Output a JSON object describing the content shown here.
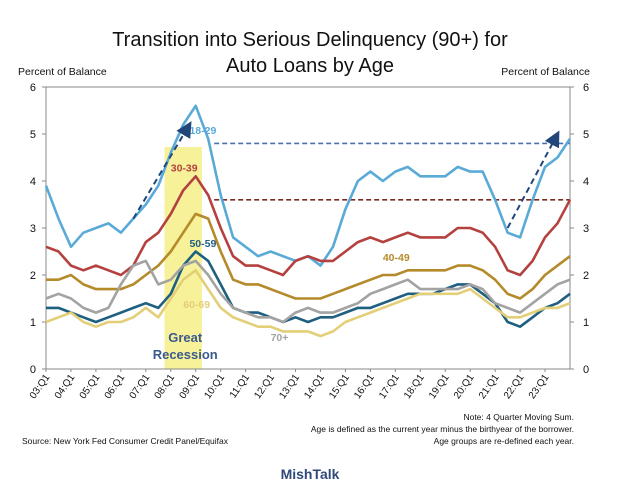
{
  "brand": "MishTalk",
  "chart_data": {
    "type": "line",
    "title_line1": "Transition into Serious Delinquency (90+) for",
    "title_line2": "Auto Loans by Age",
    "ylabel_left": "Percent of Balance",
    "ylabel_right": "Percent of Balance",
    "ylim": [
      0,
      6
    ],
    "yticks": [
      0,
      1,
      2,
      3,
      4,
      5,
      6
    ],
    "x_start": "03:Q1",
    "x_end": "24:Q1",
    "x_ticks": [
      "03:Q1",
      "04:Q1",
      "05:Q1",
      "06:Q1",
      "07:Q1",
      "08:Q1",
      "09:Q1",
      "10:Q1",
      "11:Q1",
      "12:Q1",
      "13:Q1",
      "14:Q1",
      "15:Q1",
      "16:Q1",
      "17:Q1",
      "18:Q1",
      "19:Q1",
      "20:Q1",
      "21:Q1",
      "22:Q1",
      "23:Q1"
    ],
    "shaded_region": {
      "label_line1": "Great",
      "label_line2": "Recession",
      "start": "07:Q4",
      "end": "09:Q2",
      "color": "#f7f29a"
    },
    "series": [
      {
        "name": "18-29",
        "color": "#5aaad8",
        "quarters": [
          "03:Q1",
          "03:Q3",
          "04:Q1",
          "04:Q3",
          "05:Q1",
          "05:Q3",
          "06:Q1",
          "06:Q3",
          "07:Q1",
          "07:Q3",
          "08:Q1",
          "08:Q3",
          "09:Q1",
          "09:Q3",
          "10:Q1",
          "10:Q3",
          "11:Q1",
          "11:Q3",
          "12:Q1",
          "12:Q3",
          "13:Q1",
          "13:Q3",
          "14:Q1",
          "14:Q3",
          "15:Q1",
          "15:Q3",
          "16:Q1",
          "16:Q3",
          "17:Q1",
          "17:Q3",
          "18:Q1",
          "18:Q3",
          "19:Q1",
          "19:Q3",
          "20:Q1",
          "20:Q3",
          "21:Q1",
          "21:Q3",
          "22:Q1",
          "22:Q3",
          "23:Q1",
          "23:Q3",
          "24:Q1"
        ],
        "values": [
          3.9,
          3.2,
          2.6,
          2.9,
          3.0,
          3.1,
          2.9,
          3.2,
          3.5,
          3.9,
          4.6,
          5.2,
          5.6,
          4.9,
          3.7,
          2.8,
          2.6,
          2.4,
          2.5,
          2.4,
          2.3,
          2.4,
          2.2,
          2.6,
          3.4,
          4.0,
          4.2,
          4.0,
          4.2,
          4.3,
          4.1,
          4.1,
          4.1,
          4.3,
          4.2,
          4.2,
          3.6,
          2.9,
          2.8,
          3.6,
          4.3,
          4.5,
          4.9
        ]
      },
      {
        "name": "30-39",
        "color": "#b5413f",
        "quarters": [
          "03:Q1",
          "03:Q3",
          "04:Q1",
          "04:Q3",
          "05:Q1",
          "05:Q3",
          "06:Q1",
          "06:Q3",
          "07:Q1",
          "07:Q3",
          "08:Q1",
          "08:Q3",
          "09:Q1",
          "09:Q3",
          "10:Q1",
          "10:Q3",
          "11:Q1",
          "11:Q3",
          "12:Q1",
          "12:Q3",
          "13:Q1",
          "13:Q3",
          "14:Q1",
          "14:Q3",
          "15:Q1",
          "15:Q3",
          "16:Q1",
          "16:Q3",
          "17:Q1",
          "17:Q3",
          "18:Q1",
          "18:Q3",
          "19:Q1",
          "19:Q3",
          "20:Q1",
          "20:Q3",
          "21:Q1",
          "21:Q3",
          "22:Q1",
          "22:Q3",
          "23:Q1",
          "23:Q3",
          "24:Q1"
        ],
        "values": [
          2.6,
          2.5,
          2.2,
          2.1,
          2.2,
          2.1,
          2.0,
          2.2,
          2.7,
          2.9,
          3.3,
          3.8,
          4.1,
          3.7,
          3.0,
          2.4,
          2.2,
          2.2,
          2.1,
          2.0,
          2.3,
          2.4,
          2.3,
          2.3,
          2.5,
          2.7,
          2.8,
          2.7,
          2.8,
          2.9,
          2.8,
          2.8,
          2.8,
          3.0,
          3.0,
          2.9,
          2.6,
          2.1,
          2.0,
          2.3,
          2.8,
          3.1,
          3.6
        ]
      },
      {
        "name": "40-49",
        "color": "#b58a2a",
        "quarters": [
          "03:Q1",
          "03:Q3",
          "04:Q1",
          "04:Q3",
          "05:Q1",
          "05:Q3",
          "06:Q1",
          "06:Q3",
          "07:Q1",
          "07:Q3",
          "08:Q1",
          "08:Q3",
          "09:Q1",
          "09:Q3",
          "10:Q1",
          "10:Q3",
          "11:Q1",
          "11:Q3",
          "12:Q1",
          "12:Q3",
          "13:Q1",
          "13:Q3",
          "14:Q1",
          "14:Q3",
          "15:Q1",
          "15:Q3",
          "16:Q1",
          "16:Q3",
          "17:Q1",
          "17:Q3",
          "18:Q1",
          "18:Q3",
          "19:Q1",
          "19:Q3",
          "20:Q1",
          "20:Q3",
          "21:Q1",
          "21:Q3",
          "22:Q1",
          "22:Q3",
          "23:Q1",
          "23:Q3",
          "24:Q1"
        ],
        "values": [
          1.9,
          1.9,
          2.0,
          1.8,
          1.7,
          1.7,
          1.7,
          1.8,
          2.0,
          2.2,
          2.5,
          2.9,
          3.3,
          3.2,
          2.5,
          1.9,
          1.8,
          1.8,
          1.7,
          1.6,
          1.5,
          1.5,
          1.5,
          1.6,
          1.7,
          1.8,
          1.9,
          2.0,
          2.0,
          2.1,
          2.1,
          2.1,
          2.1,
          2.2,
          2.2,
          2.1,
          1.9,
          1.6,
          1.5,
          1.7,
          2.0,
          2.2,
          2.4
        ]
      },
      {
        "name": "50-59",
        "color": "#1f5f80",
        "quarters": [
          "03:Q1",
          "03:Q3",
          "04:Q1",
          "04:Q3",
          "05:Q1",
          "05:Q3",
          "06:Q1",
          "06:Q3",
          "07:Q1",
          "07:Q3",
          "08:Q1",
          "08:Q3",
          "09:Q1",
          "09:Q3",
          "10:Q1",
          "10:Q3",
          "11:Q1",
          "11:Q3",
          "12:Q1",
          "12:Q3",
          "13:Q1",
          "13:Q3",
          "14:Q1",
          "14:Q3",
          "15:Q1",
          "15:Q3",
          "16:Q1",
          "16:Q3",
          "17:Q1",
          "17:Q3",
          "18:Q1",
          "18:Q3",
          "19:Q1",
          "19:Q3",
          "20:Q1",
          "20:Q3",
          "21:Q1",
          "21:Q3",
          "22:Q1",
          "22:Q3",
          "23:Q1",
          "23:Q3",
          "24:Q1"
        ],
        "values": [
          1.3,
          1.3,
          1.2,
          1.1,
          1.0,
          1.1,
          1.2,
          1.3,
          1.4,
          1.3,
          1.6,
          2.2,
          2.5,
          2.3,
          1.8,
          1.3,
          1.2,
          1.2,
          1.1,
          1.0,
          1.1,
          1.0,
          1.1,
          1.1,
          1.2,
          1.3,
          1.3,
          1.4,
          1.5,
          1.6,
          1.6,
          1.6,
          1.7,
          1.8,
          1.8,
          1.6,
          1.4,
          1.0,
          0.9,
          1.1,
          1.3,
          1.4,
          1.6
        ]
      },
      {
        "name": "60-69",
        "color": "#e3cf78",
        "quarters": [
          "03:Q1",
          "03:Q3",
          "04:Q1",
          "04:Q3",
          "05:Q1",
          "05:Q3",
          "06:Q1",
          "06:Q3",
          "07:Q1",
          "07:Q3",
          "08:Q1",
          "08:Q3",
          "09:Q1",
          "09:Q3",
          "10:Q1",
          "10:Q3",
          "11:Q1",
          "11:Q3",
          "12:Q1",
          "12:Q3",
          "13:Q1",
          "13:Q3",
          "14:Q1",
          "14:Q3",
          "15:Q1",
          "15:Q3",
          "16:Q1",
          "16:Q3",
          "17:Q1",
          "17:Q3",
          "18:Q1",
          "18:Q3",
          "19:Q1",
          "19:Q3",
          "20:Q1",
          "20:Q3",
          "21:Q1",
          "21:Q3",
          "22:Q1",
          "22:Q3",
          "23:Q1",
          "23:Q3",
          "24:Q1"
        ],
        "values": [
          1.0,
          1.1,
          1.2,
          1.0,
          0.9,
          1.0,
          1.0,
          1.1,
          1.3,
          1.1,
          1.5,
          1.9,
          2.1,
          1.7,
          1.3,
          1.1,
          1.0,
          0.9,
          0.9,
          0.8,
          0.8,
          0.8,
          0.7,
          0.8,
          1.0,
          1.1,
          1.2,
          1.3,
          1.4,
          1.5,
          1.6,
          1.6,
          1.6,
          1.6,
          1.7,
          1.5,
          1.3,
          1.1,
          1.1,
          1.2,
          1.3,
          1.3,
          1.4
        ]
      },
      {
        "name": "70+",
        "color": "#a3a3a3",
        "quarters": [
          "03:Q1",
          "03:Q3",
          "04:Q1",
          "04:Q3",
          "05:Q1",
          "05:Q3",
          "06:Q1",
          "06:Q3",
          "07:Q1",
          "07:Q3",
          "08:Q1",
          "08:Q3",
          "09:Q1",
          "09:Q3",
          "10:Q1",
          "10:Q3",
          "11:Q1",
          "11:Q3",
          "12:Q1",
          "12:Q3",
          "13:Q1",
          "13:Q3",
          "14:Q1",
          "14:Q3",
          "15:Q1",
          "15:Q3",
          "16:Q1",
          "16:Q3",
          "17:Q1",
          "17:Q3",
          "18:Q1",
          "18:Q3",
          "19:Q1",
          "19:Q3",
          "20:Q1",
          "20:Q3",
          "21:Q1",
          "21:Q3",
          "22:Q1",
          "22:Q3",
          "23:Q1",
          "23:Q3",
          "24:Q1"
        ],
        "values": [
          1.5,
          1.6,
          1.5,
          1.3,
          1.2,
          1.3,
          1.8,
          2.2,
          2.3,
          1.8,
          1.9,
          2.2,
          2.3,
          2.0,
          1.6,
          1.3,
          1.2,
          1.1,
          1.1,
          1.0,
          1.2,
          1.3,
          1.2,
          1.2,
          1.3,
          1.4,
          1.6,
          1.7,
          1.8,
          1.9,
          1.7,
          1.7,
          1.7,
          1.7,
          1.8,
          1.7,
          1.4,
          1.3,
          1.2,
          1.4,
          1.6,
          1.8,
          1.9
        ]
      }
    ],
    "series_labels": [
      {
        "series": "18-29",
        "text": "18-29",
        "at": "08:Q4",
        "y": 5.0
      },
      {
        "series": "30-39",
        "text": "30-39",
        "at": "08:Q1",
        "y": 4.2
      },
      {
        "series": "50-59",
        "text": "50-59",
        "at": "08:Q4",
        "y": 2.6
      },
      {
        "series": "40-49",
        "text": "40-49",
        "at": "16:Q3",
        "y": 2.3
      },
      {
        "series": "60-69",
        "text": "60-69",
        "at": "08:Q3",
        "y": 1.3
      },
      {
        "series": "70+",
        "text": "70+",
        "at": "12:Q1",
        "y": 0.6
      }
    ],
    "reference_lines": [
      {
        "name": "18-29 peak level",
        "y": 4.8,
        "color": "#4a74b0",
        "from": "09:Q3",
        "to": "24:Q1"
      },
      {
        "name": "30-39 peak level",
        "y": 3.6,
        "color": "#7a2a22",
        "from": "09:Q3",
        "to": "24:Q1"
      }
    ],
    "arrows": [
      {
        "name": "recession-rise-arrow",
        "from_q": "06:Q3",
        "from_y": 3.2,
        "to_q": "08:Q4",
        "to_y": 5.2
      },
      {
        "name": "recent-rise-arrow",
        "from_q": "21:Q3",
        "from_y": 3.0,
        "to_q": "23:Q3",
        "to_y": 5.0
      }
    ],
    "notes": [
      "Note: 4 Quarter Moving Sum.",
      "Age is defined as the current year minus the birthyear of the borrower.",
      "Age groups are re-defined each year."
    ],
    "source": "Source: New York Fed Consumer Credit Panel/Equifax",
    "grid": false,
    "legend": "inline labels"
  }
}
